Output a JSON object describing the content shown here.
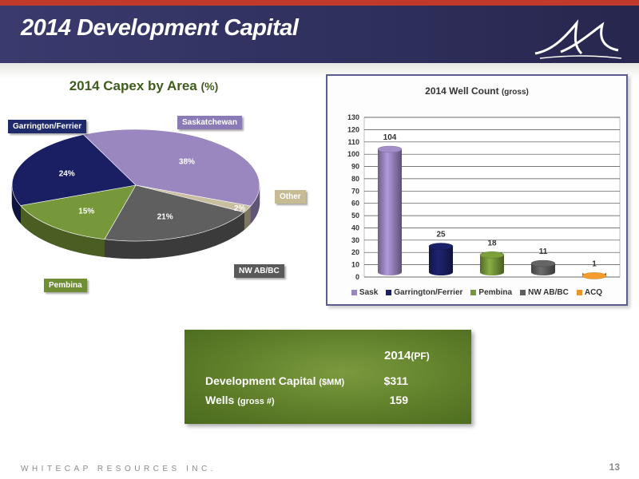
{
  "slide": {
    "title": "2014 Development Capital",
    "footer": "WHITECAP RESOURCES INC.",
    "page_number": "13",
    "brand_color": "#2f2f5c",
    "accent_color": "#c0392b"
  },
  "chart_data": [
    {
      "type": "pie",
      "title": "2014 Capex by Area",
      "title_suffix": "(%)",
      "categories": [
        "Saskatchewan",
        "Other",
        "NW AB/BC",
        "Pembina",
        "Garrington/Ferrier"
      ],
      "values": [
        38,
        2,
        21,
        15,
        24
      ],
      "data_labels": [
        "38%",
        "2%",
        "21%",
        "15%",
        "24%"
      ],
      "colors": [
        "#9b87c0",
        "#c9bfa0",
        "#5f5f5f",
        "#77983a",
        "#1a1f63"
      ],
      "label_colors": [
        "#8a7ab5",
        "#c7bb94",
        "#5a5a5a",
        "#6f8d34",
        "#1f2a6b"
      ]
    },
    {
      "type": "bar",
      "title": "2014 Well Count",
      "title_suffix": "(gross)",
      "categories": [
        "Sask",
        "Garrington/Ferrier",
        "Pembina",
        "NW AB/BC",
        "ACQ"
      ],
      "values": [
        104,
        25,
        18,
        11,
        1
      ],
      "data_labels": [
        "104",
        "25",
        "18",
        "11",
        "1"
      ],
      "colors": [
        "#9b87c0",
        "#1a1f63",
        "#77983a",
        "#5f5f5f",
        "#e8952a"
      ],
      "ylim": [
        0,
        130
      ],
      "yticks": [
        "0",
        "10",
        "20",
        "30",
        "40",
        "50",
        "60",
        "70",
        "80",
        "90",
        "100",
        "110",
        "120",
        "130"
      ],
      "grid": true,
      "legend": "bottom"
    }
  ],
  "summary": {
    "column_header": "2014",
    "column_header_suffix": "(PF)",
    "rows": [
      {
        "label": "Development Capital",
        "suffix": "($MM)",
        "value": "$311"
      },
      {
        "label": "Wells",
        "suffix": "(gross #)",
        "value": "159"
      }
    ]
  }
}
